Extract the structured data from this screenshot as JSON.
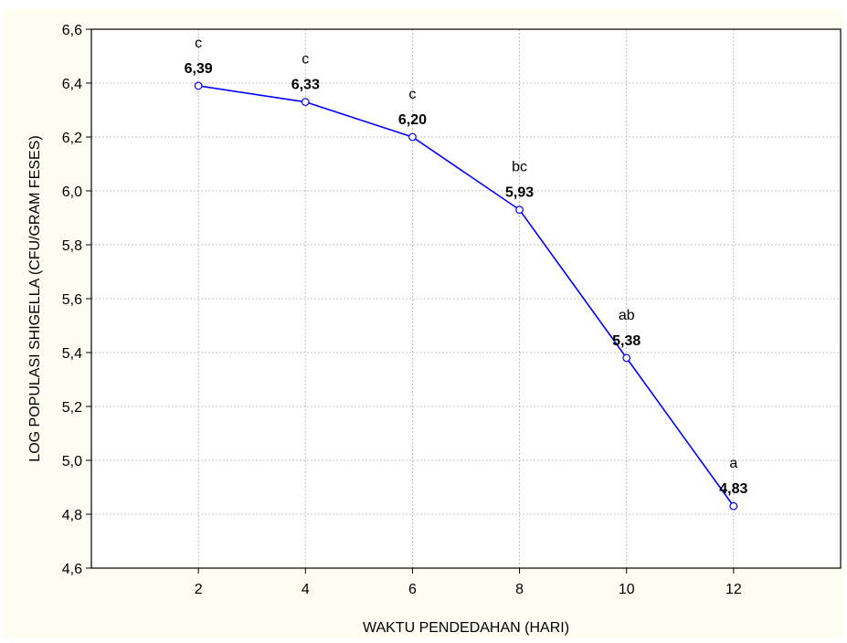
{
  "chart_data": {
    "type": "line",
    "xlabel": "WAKTU PENDEDAHAN (HARI)",
    "ylabel": "LOG POPULASI SHIGELLA (CFU/GRAM FESES)",
    "xlim": [
      0,
      14
    ],
    "ylim": [
      4.6,
      6.6
    ],
    "xticks": [
      2,
      4,
      6,
      8,
      10,
      12
    ],
    "yticks": [
      4.6,
      4.8,
      5.0,
      5.2,
      5.4,
      5.6,
      5.8,
      6.0,
      6.2,
      6.4,
      6.6
    ],
    "ytick_labels": [
      "4,6",
      "4,8",
      "5,0",
      "5,2",
      "5,4",
      "5,6",
      "5,8",
      "6,0",
      "6,2",
      "6,4",
      "6,6"
    ],
    "grid": true,
    "series": [
      {
        "color": "#0000ff",
        "x": [
          2,
          4,
          6,
          8,
          10,
          12
        ],
        "y": [
          6.39,
          6.33,
          6.2,
          5.93,
          5.38,
          4.83
        ],
        "value_labels": [
          "6,39",
          "6,33",
          "6,20",
          "5,93",
          "5,38",
          "4,83"
        ],
        "group_labels": [
          "c",
          "c",
          "c",
          "bc",
          "ab",
          "a"
        ]
      }
    ]
  }
}
